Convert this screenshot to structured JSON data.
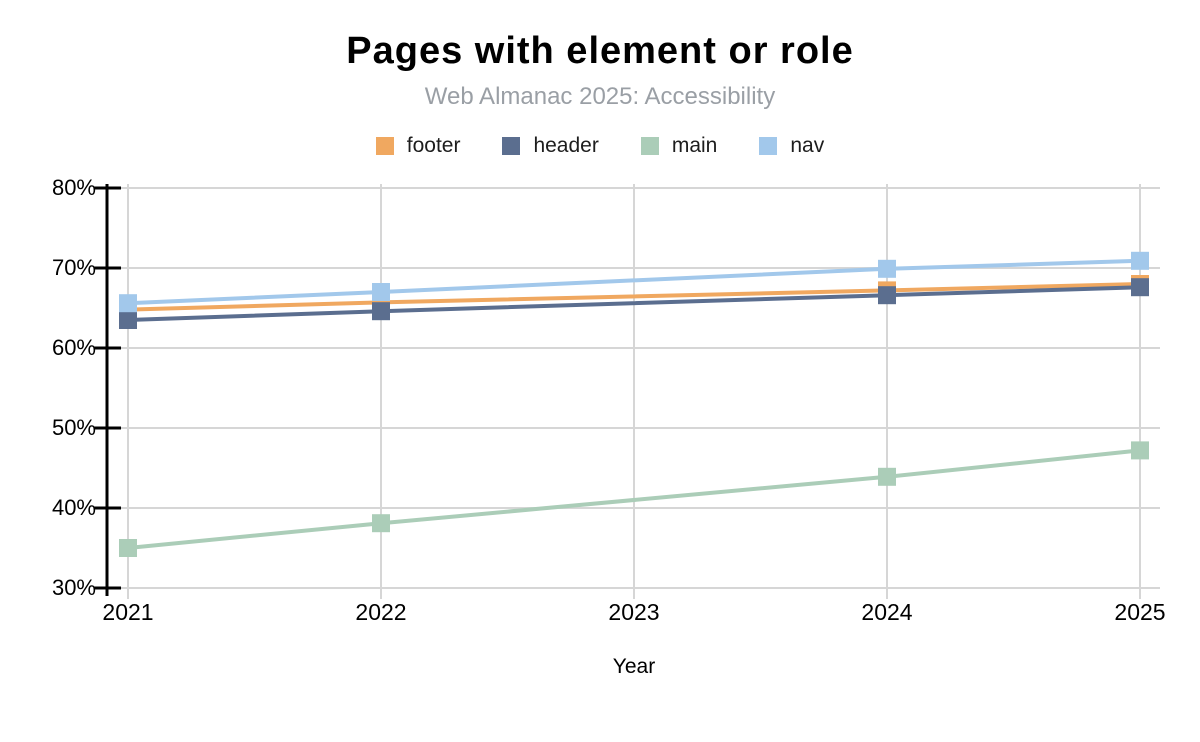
{
  "header": {
    "title": "Pages with element or role",
    "subtitle": "Web Almanac 2025: Accessibility"
  },
  "chart_data": {
    "type": "line",
    "title": "Pages with element or role",
    "subtitle": "Web Almanac 2025: Accessibility",
    "xlabel": "Year",
    "ylabel": "",
    "x": [
      2021,
      2022,
      2024,
      2025
    ],
    "x_ticks": [
      2021,
      2022,
      2023,
      2024,
      2025
    ],
    "y_ticks": [
      30,
      40,
      50,
      60,
      70,
      80
    ],
    "y_tick_labels": [
      "30%",
      "40%",
      "50%",
      "60%",
      "70%",
      "80%"
    ],
    "ylim": [
      30,
      80
    ],
    "grid": true,
    "legend_position": "top",
    "marker": "square",
    "series": [
      {
        "name": "footer",
        "color": "#F0A860",
        "values": [
          64.8,
          65.7,
          67.2,
          68.0
        ]
      },
      {
        "name": "header",
        "color": "#5B6E8F",
        "values": [
          63.5,
          64.6,
          66.6,
          67.6
        ]
      },
      {
        "name": "main",
        "color": "#ABCDB8",
        "values": [
          35.0,
          38.1,
          43.9,
          47.2
        ]
      },
      {
        "name": "nav",
        "color": "#A2C8EB",
        "values": [
          65.6,
          67.0,
          69.9,
          70.9
        ]
      }
    ],
    "colors": {
      "grid": "#D6D6D6",
      "axis": "#000000",
      "tick_label": "#000000",
      "subtitle": "#9A9FA5",
      "legend_text": "#1D1D1D"
    }
  }
}
